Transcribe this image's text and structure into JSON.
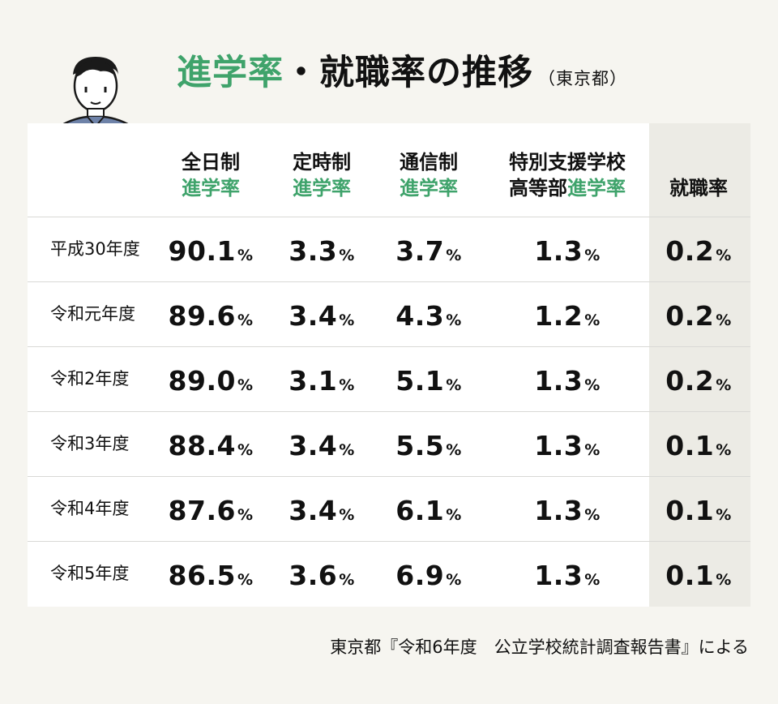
{
  "title": {
    "part1": "進学率",
    "dot": "・",
    "part2": "就職率の推移",
    "region": "（東京都）"
  },
  "colors": {
    "accent": "#3fa36b",
    "background": "#f6f5f0",
    "shade": "#ecebe5"
  },
  "chart_data": {
    "type": "table",
    "unit": "%",
    "columns": [
      {
        "line1": "全日制",
        "line2_prefix": "",
        "line2_green": "進学率"
      },
      {
        "line1": "定時制",
        "line2_prefix": "",
        "line2_green": "進学率"
      },
      {
        "line1": "通信制",
        "line2_prefix": "",
        "line2_green": "進学率"
      },
      {
        "line1": "特別支援学校",
        "line2_prefix": "高等部",
        "line2_green": "進学率"
      },
      {
        "line1": "",
        "line2_prefix": "就職率",
        "line2_green": ""
      }
    ],
    "rows": [
      {
        "label": "平成30年度",
        "values": [
          "90.1",
          "3.3",
          "3.7",
          "1.3",
          "0.2"
        ]
      },
      {
        "label": "令和元年度",
        "values": [
          "89.6",
          "3.4",
          "4.3",
          "1.2",
          "0.2"
        ]
      },
      {
        "label": "令和2年度",
        "values": [
          "89.0",
          "3.1",
          "5.1",
          "1.3",
          "0.2"
        ]
      },
      {
        "label": "令和3年度",
        "values": [
          "88.4",
          "3.4",
          "5.5",
          "1.3",
          "0.1"
        ]
      },
      {
        "label": "令和4年度",
        "values": [
          "87.6",
          "3.4",
          "6.1",
          "1.3",
          "0.1"
        ]
      },
      {
        "label": "令和5年度",
        "values": [
          "86.5",
          "3.6",
          "6.9",
          "1.3",
          "0.1"
        ]
      }
    ]
  },
  "source": "東京都『令和6年度　公立学校統計調査報告書』による"
}
